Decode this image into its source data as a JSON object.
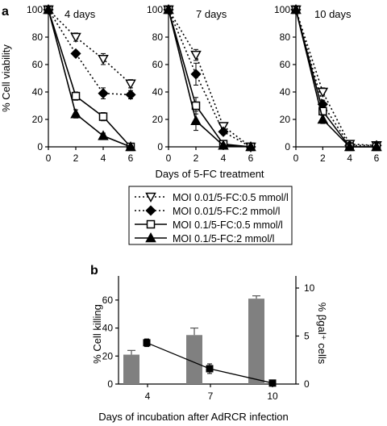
{
  "panel_a": {
    "label": "a",
    "ylabel": "% Cell viability",
    "xlabel": "Days of 5-FC treatment",
    "y_ticks": [
      "0",
      "20",
      "40",
      "60",
      "80",
      "100"
    ],
    "x_ticks": [
      "0",
      "2",
      "4",
      "6"
    ]
  },
  "panel_b": {
    "label": "b",
    "ylabel_left": "% Cell killing",
    "ylabel_right": "% βgal⁺ cells",
    "xlabel": "Days of incubation after AdRCR infection",
    "y_ticks_left": [
      "0",
      "20",
      "40",
      "60"
    ],
    "y_ticks_right": [
      "0",
      "5",
      "10"
    ],
    "x_ticks": [
      "4",
      "7",
      "10"
    ]
  },
  "legend": {
    "entries": [
      "MOI 0.01/5-FC:0.5 mmol/l",
      "MOI 0.01/5-FC:2 mmol/l",
      "MOI 0.1/5-FC:0.5 mmol/l",
      "MOI 0.1/5-FC:2 mmol/l"
    ]
  },
  "colors": {
    "bar": "#808080",
    "line": "#000000"
  },
  "chart_data": [
    {
      "type": "line",
      "title": "4 days",
      "xlabel": "Days of 5-FC treatment",
      "ylabel": "% Cell viability",
      "x": [
        0,
        2,
        4,
        6
      ],
      "xlim": [
        0,
        6
      ],
      "ylim": [
        0,
        100
      ],
      "series": [
        {
          "name": "MOI 0.01/5-FC:0.5 mmol/l",
          "values": [
            100,
            80,
            64,
            46
          ],
          "errors": [
            2,
            3,
            4,
            3
          ]
        },
        {
          "name": "MOI 0.01/5-FC:2 mmol/l",
          "values": [
            100,
            68,
            39,
            38
          ],
          "errors": [
            2,
            2,
            4,
            3
          ]
        },
        {
          "name": "MOI 0.1/5-FC:0.5 mmol/l",
          "values": [
            100,
            37,
            22,
            0
          ],
          "errors": [
            2,
            3,
            3,
            1
          ]
        },
        {
          "name": "MOI 0.1/5-FC:2 mmol/l",
          "values": [
            100,
            24,
            8,
            0
          ],
          "errors": [
            2,
            3,
            2,
            1
          ]
        }
      ]
    },
    {
      "type": "line",
      "title": "7 days",
      "xlabel": "Days of 5-FC treatment",
      "ylabel": "% Cell viability",
      "x": [
        0,
        2,
        4,
        6
      ],
      "xlim": [
        0,
        6
      ],
      "ylim": [
        0,
        100
      ],
      "series": [
        {
          "name": "MOI 0.01/5-FC:0.5 mmol/l",
          "values": [
            100,
            67,
            15,
            0
          ],
          "errors": [
            2,
            4,
            2,
            1
          ]
        },
        {
          "name": "MOI 0.01/5-FC:2 mmol/l",
          "values": [
            100,
            53,
            11,
            0
          ],
          "errors": [
            2,
            8,
            2,
            1
          ]
        },
        {
          "name": "MOI 0.1/5-FC:0.5 mmol/l",
          "values": [
            100,
            30,
            2,
            0
          ],
          "errors": [
            2,
            6,
            1,
            1
          ]
        },
        {
          "name": "MOI 0.1/5-FC:2 mmol/l",
          "values": [
            100,
            19,
            1,
            0
          ],
          "errors": [
            2,
            7,
            1,
            1
          ]
        }
      ]
    },
    {
      "type": "line",
      "title": "10 days",
      "xlabel": "Days of 5-FC treatment",
      "ylabel": "% Cell viability",
      "x": [
        0,
        2,
        4,
        6
      ],
      "xlim": [
        0,
        6
      ],
      "ylim": [
        0,
        100
      ],
      "series": [
        {
          "name": "MOI 0.01/5-FC:0.5 mmol/l",
          "values": [
            100,
            40,
            2,
            1
          ],
          "errors": [
            2,
            3,
            1,
            1
          ]
        },
        {
          "name": "MOI 0.01/5-FC:2 mmol/l",
          "values": [
            100,
            31,
            1,
            1
          ],
          "errors": [
            2,
            3,
            1,
            1
          ]
        },
        {
          "name": "MOI 0.1/5-FC:0.5 mmol/l",
          "values": [
            100,
            26,
            0,
            0
          ],
          "errors": [
            2,
            3,
            1,
            1
          ]
        },
        {
          "name": "MOI 0.1/5-FC:2 mmol/l",
          "values": [
            100,
            20,
            0,
            0
          ],
          "errors": [
            2,
            3,
            1,
            1
          ]
        }
      ]
    },
    {
      "type": "bar",
      "categories": [
        "4",
        "7",
        "10"
      ],
      "xlabel": "Days of incubation after AdRCR infection",
      "ylabel": "% Cell killing",
      "ylim": [
        0,
        70
      ],
      "values": [
        21,
        35,
        61
      ],
      "errors": [
        3,
        5,
        2
      ],
      "secondary": {
        "type": "line",
        "ylabel": "% βgal⁺ cells",
        "ylim": [
          0,
          10
        ],
        "values": [
          4.3,
          1.6,
          0.1
        ],
        "errors": [
          0.4,
          0.5,
          0.2
        ]
      }
    }
  ]
}
